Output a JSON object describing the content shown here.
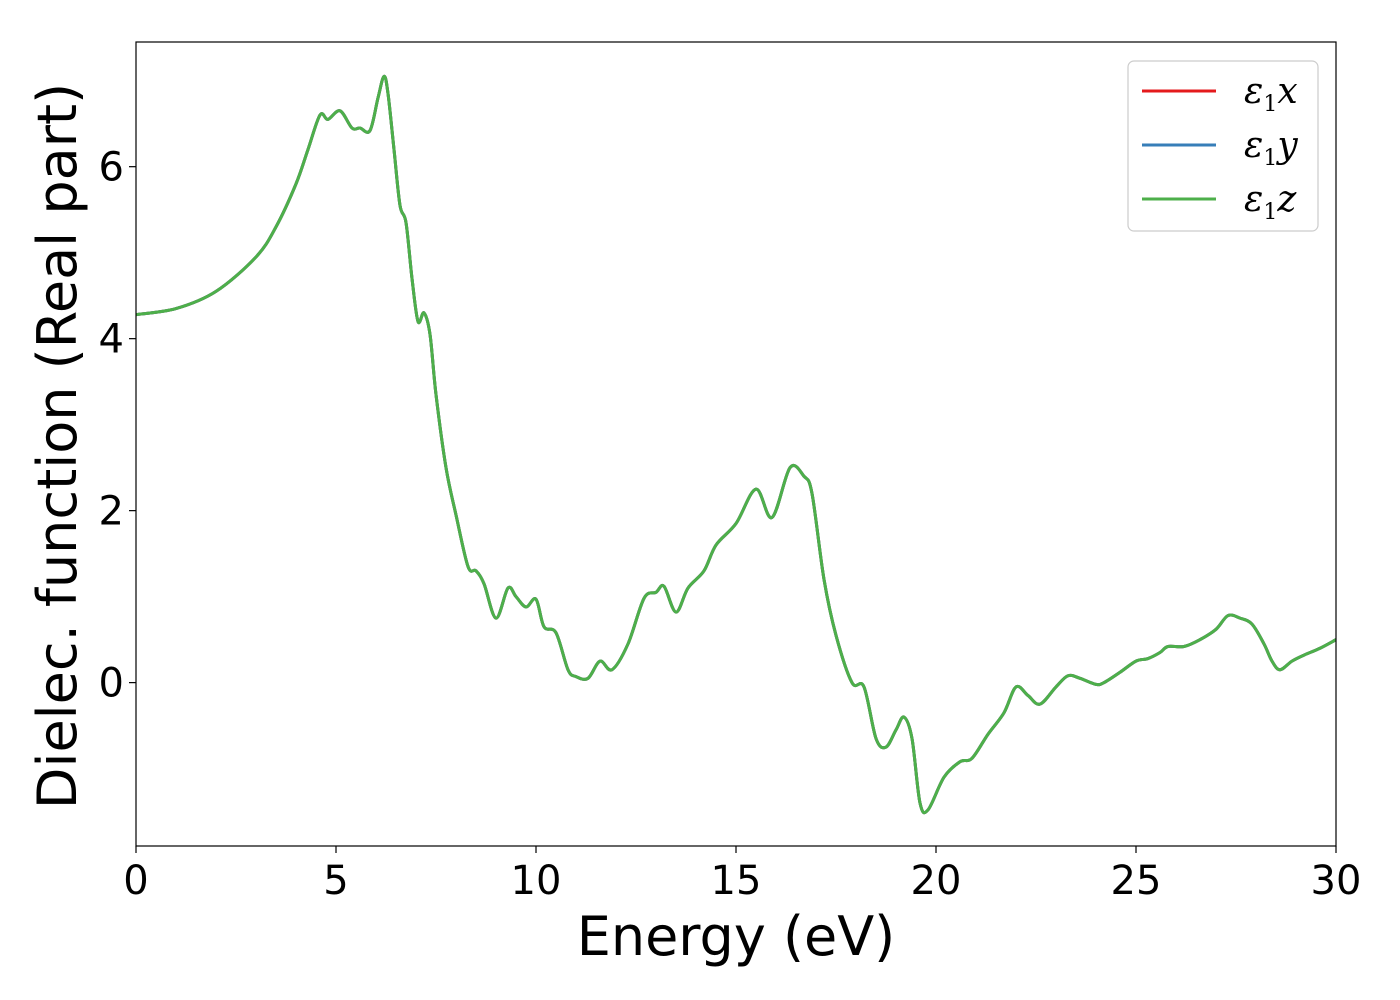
{
  "chart_data": {
    "type": "line",
    "xlabel": "Energy (eV)",
    "ylabel": "Dielec. function (Real part)",
    "xlim": [
      0,
      30
    ],
    "ylim": [
      -1.9,
      7.45
    ],
    "xticks": [
      0,
      5,
      10,
      15,
      20,
      25,
      30
    ],
    "yticks": [
      0,
      2,
      4,
      6
    ],
    "grid": false,
    "legend_position": "top-right",
    "series": [
      {
        "name": "ε1x",
        "legend_main": "ε",
        "legend_sub": "1",
        "legend_tail": "x",
        "color": "#e41a1c",
        "x": [
          0,
          1,
          2,
          3,
          3.5,
          4,
          4.3,
          4.6,
          4.8,
          5.1,
          5.4,
          5.6,
          5.85,
          6.05,
          6.2,
          6.3,
          6.45,
          6.6,
          6.75,
          6.9,
          7.05,
          7.2,
          7.35,
          7.5,
          7.75,
          8.0,
          8.3,
          8.5,
          8.7,
          9.0,
          9.3,
          9.5,
          9.75,
          10.0,
          10.2,
          10.5,
          10.8,
          11.0,
          11.3,
          11.6,
          11.9,
          12.3,
          12.7,
          13.0,
          13.2,
          13.5,
          13.8,
          14.2,
          14.5,
          15.0,
          15.5,
          15.9,
          16.35,
          16.7,
          16.9,
          17.2,
          17.5,
          17.9,
          18.2,
          18.5,
          18.75,
          19.0,
          19.2,
          19.4,
          19.6,
          19.8,
          20.2,
          20.6,
          20.9,
          21.3,
          21.7,
          22.0,
          22.3,
          22.6,
          23.0,
          23.3,
          23.6,
          24.0,
          24.2,
          24.6,
          25.0,
          25.3,
          25.6,
          25.8,
          26.2,
          26.6,
          27.0,
          27.3,
          27.6,
          27.9,
          28.2,
          28.4,
          28.6,
          28.9,
          29.2,
          29.6,
          30.0
        ],
        "y": [
          4.28,
          4.35,
          4.55,
          4.95,
          5.3,
          5.8,
          6.2,
          6.6,
          6.55,
          6.65,
          6.45,
          6.45,
          6.42,
          6.8,
          7.05,
          6.85,
          6.2,
          5.55,
          5.35,
          4.7,
          4.2,
          4.3,
          4.05,
          3.35,
          2.5,
          1.95,
          1.35,
          1.3,
          1.15,
          0.75,
          1.1,
          1.0,
          0.88,
          0.97,
          0.65,
          0.58,
          0.15,
          0.07,
          0.05,
          0.25,
          0.15,
          0.45,
          0.98,
          1.05,
          1.12,
          0.82,
          1.1,
          1.3,
          1.6,
          1.85,
          2.25,
          1.92,
          2.5,
          2.4,
          2.2,
          1.2,
          0.55,
          0.0,
          -0.05,
          -0.65,
          -0.75,
          -0.55,
          -0.4,
          -0.65,
          -1.4,
          -1.48,
          -1.1,
          -0.92,
          -0.88,
          -0.6,
          -0.35,
          -0.05,
          -0.15,
          -0.25,
          -0.05,
          0.08,
          0.05,
          -0.02,
          0.0,
          0.12,
          0.25,
          0.28,
          0.35,
          0.42,
          0.42,
          0.5,
          0.62,
          0.78,
          0.75,
          0.68,
          0.45,
          0.25,
          0.15,
          0.25,
          0.32,
          0.4,
          0.5
        ]
      },
      {
        "name": "ε1y",
        "legend_main": "ε",
        "legend_sub": "1",
        "legend_tail": "y",
        "color": "#377eb8",
        "same_as": "ε1x"
      },
      {
        "name": "ε1z",
        "legend_main": "ε",
        "legend_sub": "1",
        "legend_tail": "z",
        "color": "#4daf4a",
        "same_as": "ε1x"
      }
    ]
  }
}
